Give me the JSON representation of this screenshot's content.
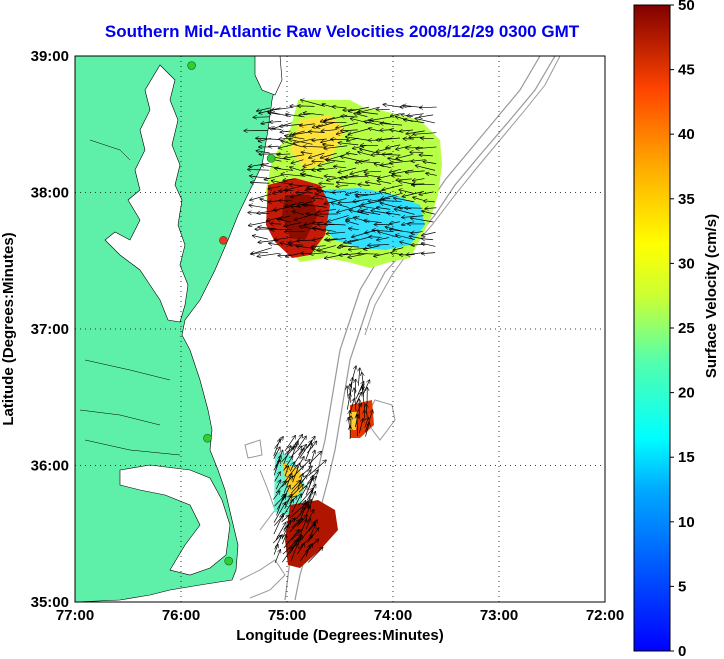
{
  "chart_data": {
    "type": "quiver-map",
    "title": "Southern Mid-Atlantic Raw Velocities 2008/12/29 0300 GMT",
    "xlabel": "Longitude (Degrees:Minutes)",
    "ylabel": "Latitude (Degrees:Minutes)",
    "xlim": [
      -77,
      -72
    ],
    "ylim": [
      35,
      39
    ],
    "x_tick_labels": [
      "77:00",
      "76:00",
      "75:00",
      "74:00",
      "73:00",
      "72:00"
    ],
    "y_tick_labels": [
      "35:00",
      "36:00",
      "37:00",
      "38:00",
      "39:00"
    ],
    "grid": "dotted",
    "colorbar": {
      "label": "Surface Velocity (cm/s)",
      "range": [
        0,
        50
      ],
      "tick_labels": [
        "0",
        "5",
        "10",
        "15",
        "20",
        "25",
        "30",
        "35",
        "40",
        "45",
        "50"
      ],
      "colormap": "jet"
    },
    "regions": [
      {
        "area": "north",
        "lon_range": [
          -75.2,
          -73.6
        ],
        "lat_range": [
          37.5,
          38.65
        ],
        "speed_range_cm_s": [
          5,
          50
        ],
        "dominant_direction": "westward"
      },
      {
        "area": "south-inner",
        "lon_range": [
          -75.15,
          -74.8
        ],
        "lat_range": [
          35.3,
          36.15
        ],
        "speed_range_cm_s": [
          10,
          50
        ],
        "dominant_direction": "northeastward"
      },
      {
        "area": "south-outer",
        "lon_range": [
          -74.45,
          -74.2
        ],
        "lat_range": [
          36.2,
          36.6
        ],
        "speed_range_cm_s": [
          25,
          50
        ],
        "dominant_direction": "northward"
      }
    ],
    "stations": [
      {
        "lon": -75.9,
        "lat": 38.93,
        "color": "#33cc33"
      },
      {
        "lon": -75.15,
        "lat": 38.25,
        "color": "#33cc33"
      },
      {
        "lon": -75.6,
        "lat": 37.65,
        "color": "#ee3322"
      },
      {
        "lon": -75.75,
        "lat": 36.2,
        "color": "#33cc33"
      },
      {
        "lon": -75.55,
        "lat": 35.3,
        "color": "#33cc33"
      }
    ]
  },
  "colors": {
    "land": "#5ef0a8",
    "title": "#0000ee",
    "contour": "#999999",
    "station_green": "#33cc33",
    "station_red": "#ee3322"
  }
}
